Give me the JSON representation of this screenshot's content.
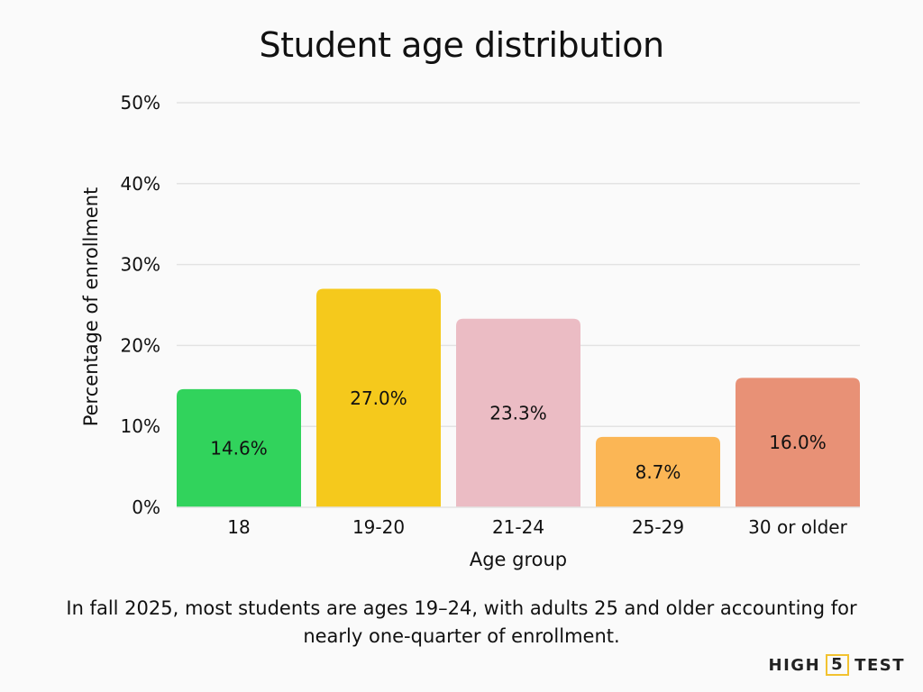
{
  "chart_data": {
    "type": "bar",
    "title": "Student age distribution",
    "xlabel": "Age group",
    "ylabel": "Percentage of enrollment",
    "ylim": [
      0,
      50
    ],
    "yticks": [
      "0%",
      "10%",
      "20%",
      "30%",
      "40%",
      "50%"
    ],
    "grid": true,
    "categories": [
      "18",
      "19-20",
      "21-24",
      "25-29",
      "30 or older"
    ],
    "values": [
      14.6,
      27.0,
      23.3,
      8.7,
      16.0
    ],
    "data_labels": [
      "14.6%",
      "27.0%",
      "23.3%",
      "8.7%",
      "16.0%"
    ],
    "colors": [
      "#31d35c",
      "#f5c91c",
      "#ebbcc4",
      "#fbb655",
      "#e89176"
    ]
  },
  "caption": "In fall 2025, most students are ages 19–24, with adults 25 and older accounting for nearly one-quarter of enrollment.",
  "logo": {
    "left": "HIGH",
    "mid": "5",
    "right": "TEST"
  }
}
